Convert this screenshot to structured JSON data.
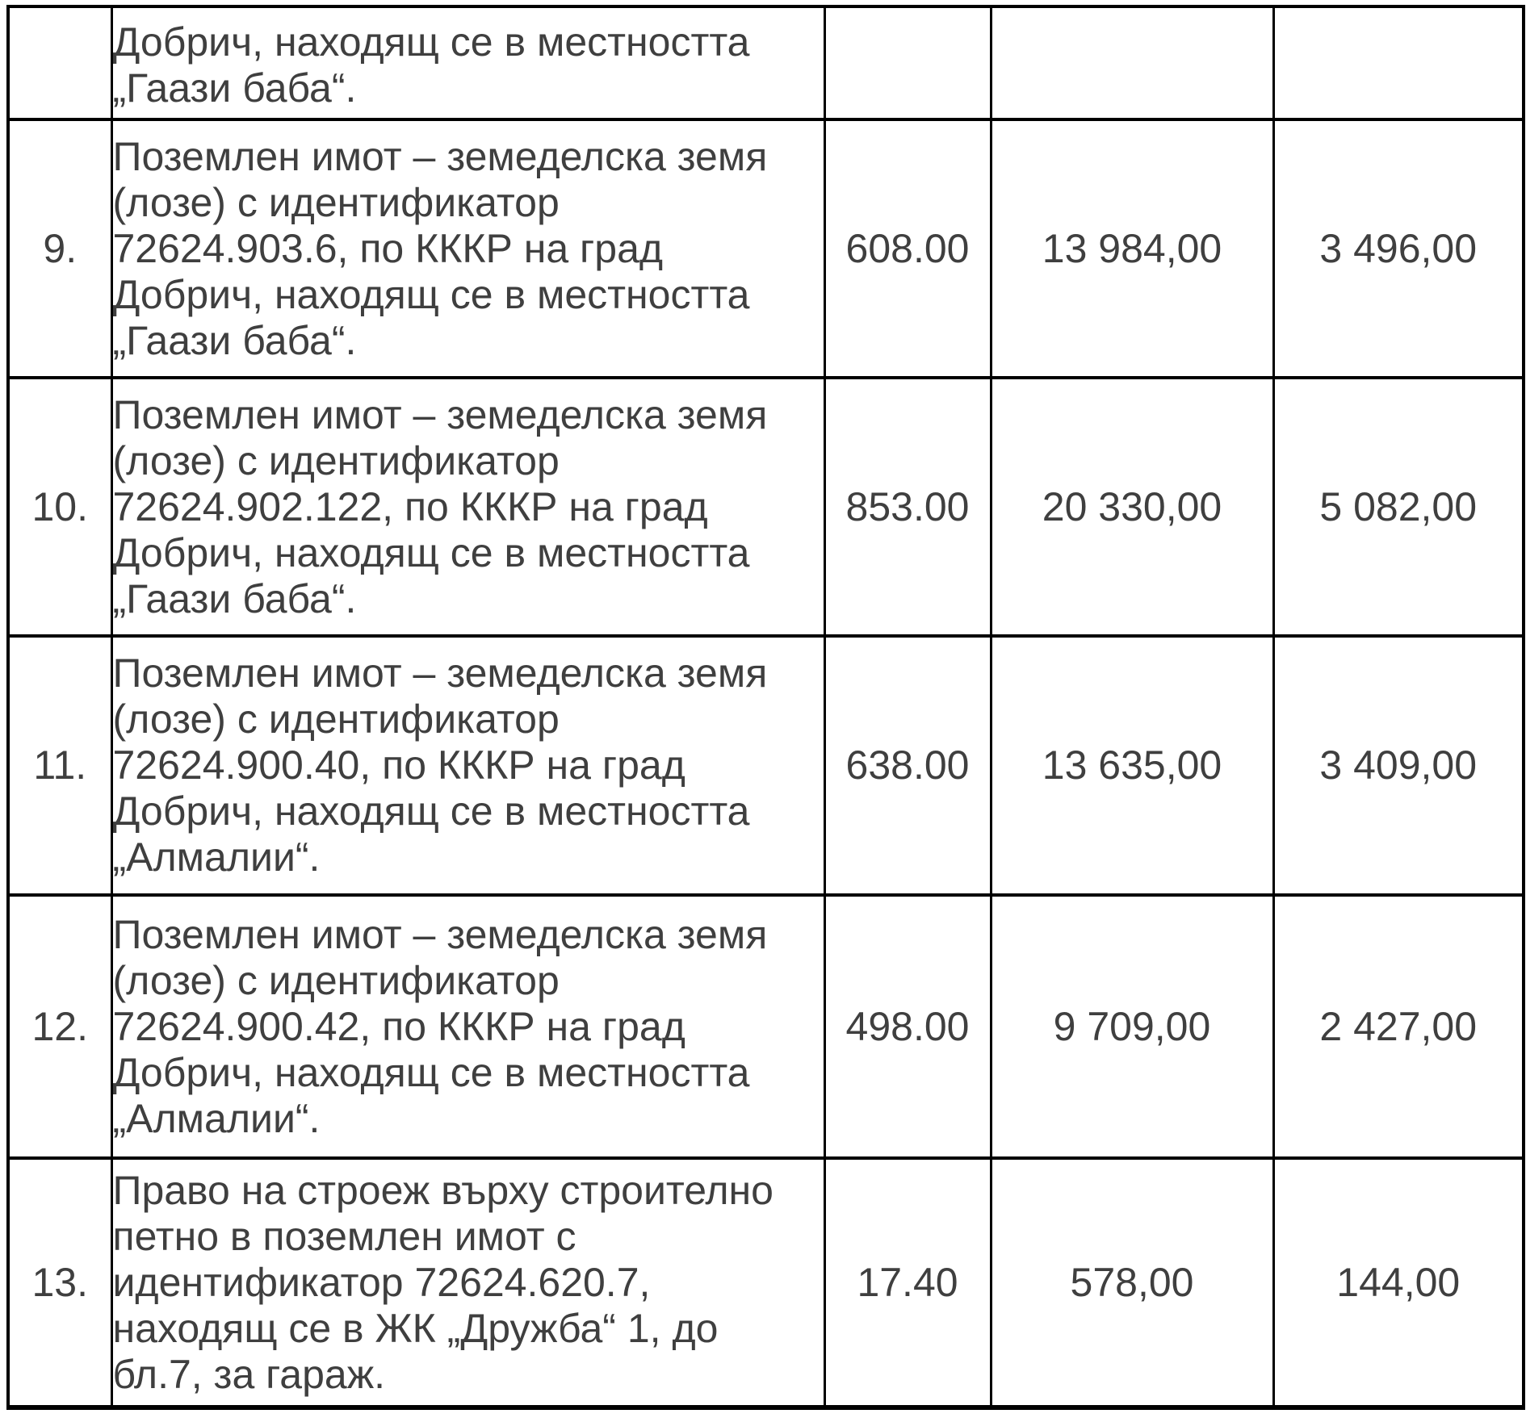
{
  "page": {
    "background_color": "#ffffff",
    "text_color": "#3f3f3f",
    "border_color": "#000000"
  },
  "table": {
    "continuation_row": {
      "num": "",
      "desc": "Добрич, находящ се в местността\n„Гаази баба“.",
      "v1": "",
      "v2": "",
      "v3": ""
    },
    "rows": [
      {
        "num": "9.",
        "desc": "Поземлен имот – земеделска земя\n(лозе) с идентификатор\n72624.903.6, по КККР на град\nДобрич, находящ се в местността\n„Гаази баба“.",
        "v1": "608.00",
        "v2": "13 984,00",
        "v3": "3 496,00"
      },
      {
        "num": "10.",
        "desc": "Поземлен имот – земеделска земя\n(лозе) с идентификатор\n72624.902.122, по КККР на град\nДобрич, находящ се в местността\n„Гаази баба“.",
        "v1": "853.00",
        "v2": "20 330,00",
        "v3": "5 082,00"
      },
      {
        "num": "11.",
        "desc": "Поземлен имот – земеделска земя\n(лозе) с идентификатор\n72624.900.40, по КККР на град\nДобрич, находящ се в местността\n„Алмалии“.",
        "v1": "638.00",
        "v2": "13 635,00",
        "v3": "3 409,00"
      },
      {
        "num": "12.",
        "desc": "Поземлен имот – земеделска земя\n(лозе) с идентификатор\n72624.900.42, по КККР на град\nДобрич, находящ се в местността\n„Алмалии“.",
        "v1": "498.00",
        "v2": "9 709,00",
        "v3": "2 427,00"
      },
      {
        "num": "13.",
        "desc": "Право на строеж върху строително\nпетно в поземлен имот с\nидентификатор 72624.620.7,\nнаходящ се в ЖК „Дружба“ 1, до\nбл.7, за гараж.",
        "v1": "17.40",
        "v2": "578,00",
        "v3": "144,00"
      }
    ]
  }
}
